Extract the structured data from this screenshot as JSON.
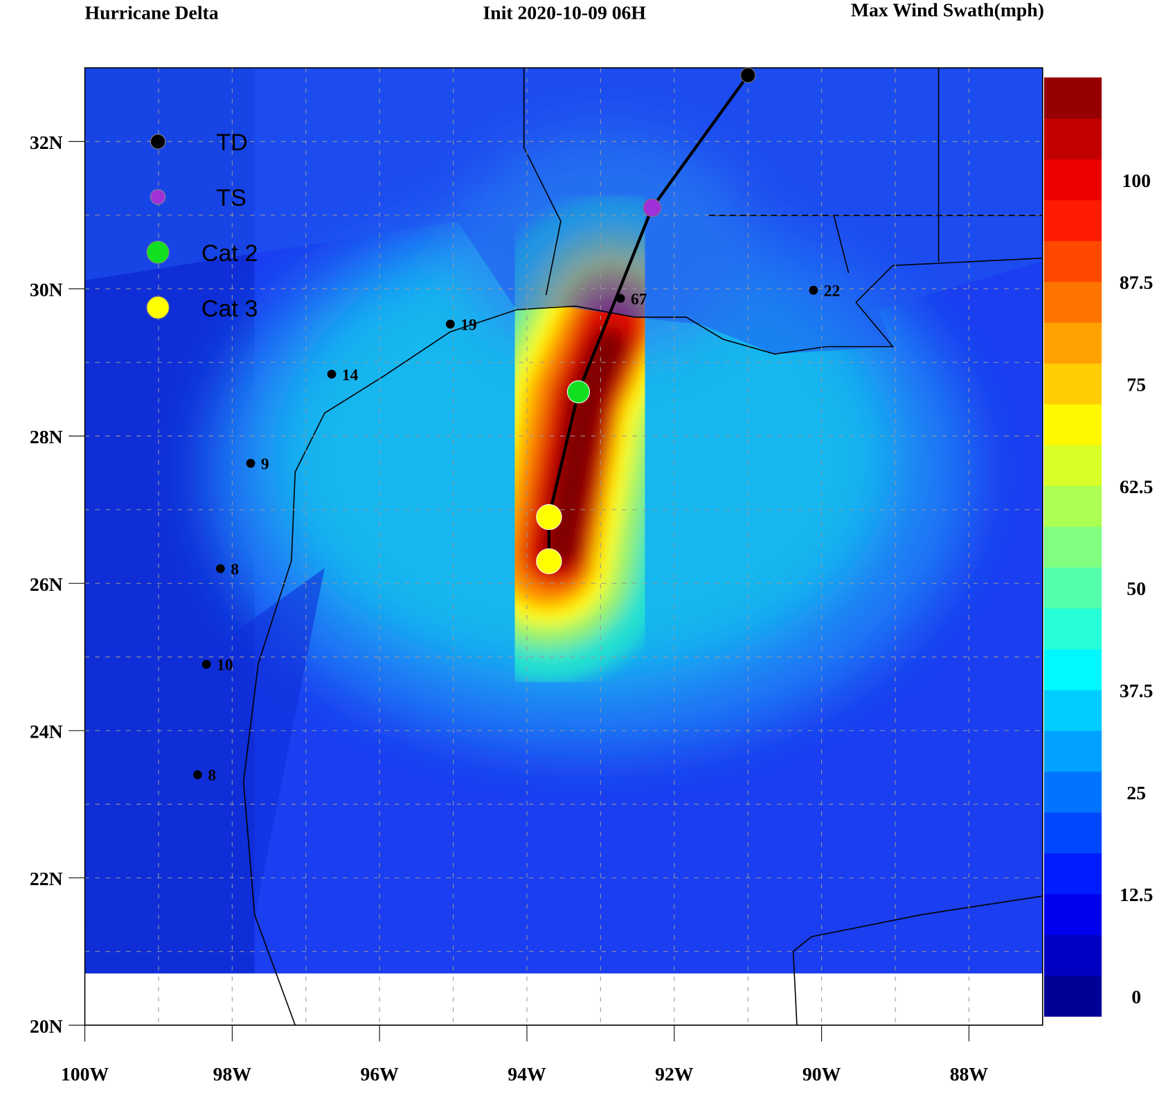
{
  "header": {
    "left": "Hurricane Delta",
    "center": "Init  2020-10-09 06H",
    "right": "Max Wind Swath(mph)"
  },
  "map": {
    "lonlim": [
      -100,
      -87
    ],
    "latlim": [
      20,
      33
    ],
    "lat_ticks": [
      {
        "value": 20,
        "label": "20N"
      },
      {
        "value": 22,
        "label": "22N"
      },
      {
        "value": 24,
        "label": "24N"
      },
      {
        "value": 26,
        "label": "26N"
      },
      {
        "value": 28,
        "label": "28N"
      },
      {
        "value": 30,
        "label": "30N"
      },
      {
        "value": 32,
        "label": "32N"
      }
    ],
    "lon_ticks": [
      {
        "value": -100,
        "label": "100W"
      },
      {
        "value": -98,
        "label": "98W"
      },
      {
        "value": -96,
        "label": "96W"
      },
      {
        "value": -94,
        "label": "94W"
      },
      {
        "value": -92,
        "label": "92W"
      },
      {
        "value": -90,
        "label": "90W"
      },
      {
        "value": -88,
        "label": "88W"
      }
    ],
    "track": {
      "lon": [
        -91.0,
        -92.3,
        -93.3,
        -93.7,
        -93.7
      ],
      "lat": [
        32.9,
        31.1,
        28.6,
        26.9,
        26.3
      ],
      "color": [
        "#000000",
        "#a030d8",
        "#10e020",
        "#ffff00",
        "#ffff00"
      ]
    },
    "stations": [
      {
        "value": 67,
        "lon": -92.73,
        "lat": 29.87
      },
      {
        "value": 22,
        "lon": -90.11,
        "lat": 29.98
      },
      {
        "value": 19,
        "lon": -95.04,
        "lat": 29.52
      },
      {
        "value": 14,
        "lon": -96.65,
        "lat": 28.84
      },
      {
        "value": 9,
        "lon": -97.75,
        "lat": 27.63
      },
      {
        "value": 8,
        "lon": -98.16,
        "lat": 26.2
      },
      {
        "value": 10,
        "lon": -98.35,
        "lat": 24.9
      },
      {
        "value": 8,
        "lon": -98.47,
        "lat": 23.4
      }
    ]
  },
  "legend": [
    {
      "label": "TD",
      "color": "#000000"
    },
    {
      "label": "TS",
      "color": "#a030d8"
    },
    {
      "label": "Cat 2",
      "color": "#10e020"
    },
    {
      "label": "Cat 3",
      "color": "#ffff00"
    }
  ],
  "colorbar": {
    "range": [
      -2.5,
      112.5
    ],
    "ticks": [
      0,
      12.5,
      25,
      37.5,
      50,
      62.5,
      75,
      87.5,
      100
    ]
  }
}
